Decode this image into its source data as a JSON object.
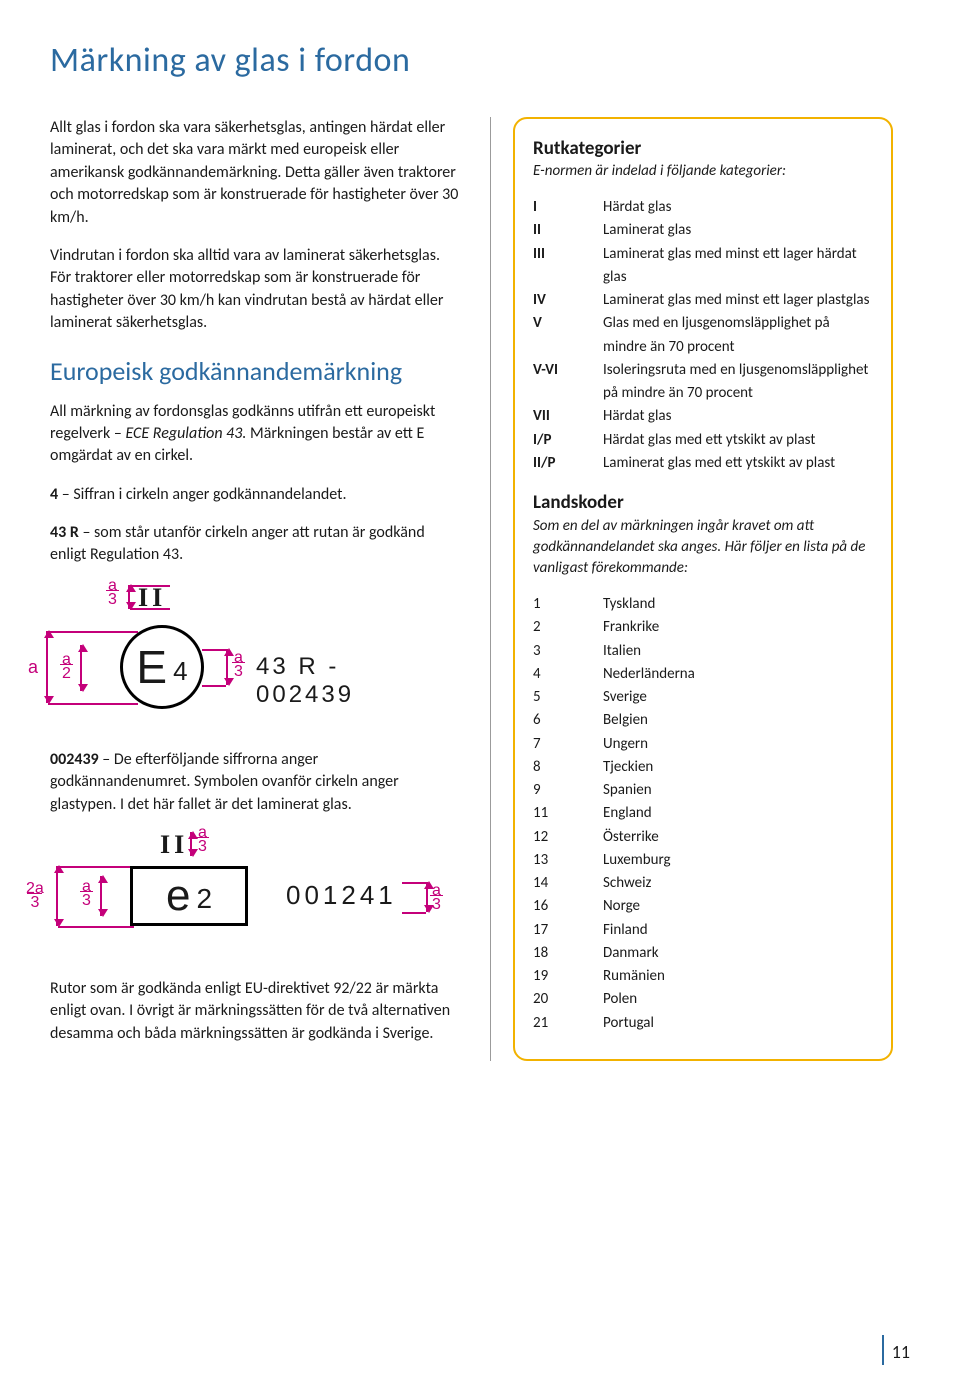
{
  "page": {
    "title": "Märkning av glas i fordon",
    "title_fontsize": 34,
    "title_color": "#2b6aa0",
    "body_fontsize": 16,
    "accent_color": "#c4007a",
    "page_number": "11"
  },
  "left": {
    "p1": "Allt glas i fordon ska vara säkerhetsglas, antingen härdat eller laminerat, och det ska vara märkt med europeisk eller amerikansk godkännandemärkning. Detta gäller även traktorer och motorredskap som är konstruerade för hastigheter över 30 km/h.",
    "p2": "Vindrutan i fordon ska alltid vara av laminerat säkerhetsglas. För traktorer eller motorredskap som är konstruerade för hastigheter över 30 km/h kan vindrutan bestå av härdat eller laminerat säkerhetsglas.",
    "h2": "Europeisk godkännandemärkning",
    "h2_fontsize": 26,
    "h2_color": "#2b6aa0",
    "p3_a": "All märkning av fordonsglas godkänns utifrån ett europeiskt regelverk – ",
    "p3_italic": "ECE Regulation 43.",
    "p3_b": " Märkningen består av ett E omgärdat av en cirkel.",
    "b4_lead": "4",
    "b4_text": " – Siffran i cirkeln anger godkännandelandet.",
    "b43_lead": "43 R",
    "b43_text": " – som står utanför cirkeln anger att rutan är godkänd enligt Regulation 43.",
    "b002439_lead": "002439",
    "b002439_text": " – De efterföljande siffrorna anger godkännandenumret. Symbolen ovanför cirkeln anger glastypen. I det här fallet är det laminerat glas.",
    "p_last": "Rutor som är godkända enligt EU-direktivet 92/22 är märkta enligt ovan. I övrigt är märkningssätten för de två alternativen desamma och båda märkningssätten är godkända i Sverige."
  },
  "diagA": {
    "roman": "II",
    "circle_e": "E",
    "circle_num": "4",
    "code": "43 R - 002439",
    "dim_a": "a",
    "dim_a2": "a 2",
    "dim_a3_frac_top": "a",
    "dim_a3_frac_bot": "3"
  },
  "diagB": {
    "roman": "II",
    "rect_e": "e",
    "rect_num": "2",
    "code": "001241",
    "dim_2a3_top": "2a",
    "dim_2a3_bot": "3"
  },
  "box": {
    "border_color": "#f2b200",
    "h_rut": "Rutkategorier",
    "sub_rut": "E-normen är indelad i följande kategorier:",
    "cats": [
      {
        "k": "I",
        "v": "Härdat glas"
      },
      {
        "k": "II",
        "v": "Laminerat glas"
      },
      {
        "k": "III",
        "v": "Laminerat glas med minst ett lager härdat glas"
      },
      {
        "k": "IV",
        "v": "Laminerat glas med minst ett lager plastglas"
      },
      {
        "k": "V",
        "v": "Glas med en ljusgenomsläpplighet på mindre än 70 procent"
      },
      {
        "k": "V-VI",
        "v": "Isoleringsruta med en ljusgenomsläpplighet på mindre än 70 procent"
      },
      {
        "k": "VII",
        "v": "Härdat glas"
      },
      {
        "k": "I/P",
        "v": "Härdat glas med ett ytskikt av plast"
      },
      {
        "k": "II/P",
        "v": "Laminerat glas med ett ytskikt av plast"
      }
    ],
    "h_land": "Landskoder",
    "sub_land": "Som en del av märkningen ingår kravet om att godkännandelandet ska anges. Här följer en lista på de vanligast förekommande:",
    "countries": [
      {
        "k": "1",
        "v": "Tyskland"
      },
      {
        "k": "2",
        "v": "Frankrike"
      },
      {
        "k": "3",
        "v": "Italien"
      },
      {
        "k": "4",
        "v": "Nederländerna"
      },
      {
        "k": "5",
        "v": "Sverige"
      },
      {
        "k": "6",
        "v": "Belgien"
      },
      {
        "k": "7",
        "v": "Ungern"
      },
      {
        "k": "8",
        "v": "Tjeckien"
      },
      {
        "k": "9",
        "v": "Spanien"
      },
      {
        "k": "11",
        "v": "England"
      },
      {
        "k": "12",
        "v": "Österrike"
      },
      {
        "k": "13",
        "v": "Luxemburg"
      },
      {
        "k": "14",
        "v": "Schweiz"
      },
      {
        "k": "16",
        "v": "Norge"
      },
      {
        "k": "17",
        "v": "Finland"
      },
      {
        "k": "18",
        "v": "Danmark"
      },
      {
        "k": "19",
        "v": "Rumänien"
      },
      {
        "k": "20",
        "v": "Polen"
      },
      {
        "k": "21",
        "v": "Portugal"
      }
    ]
  }
}
